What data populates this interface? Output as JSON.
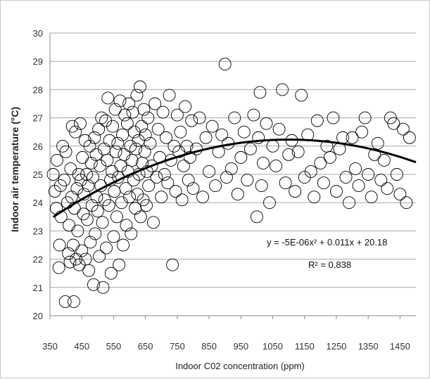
{
  "chart_data": {
    "type": "scatter",
    "title": "",
    "xlabel": "Indoor C02 concentration (ppm)",
    "ylabel": "Indoor air temperature (°C)",
    "xlim": [
      350,
      1500
    ],
    "ylim": [
      20,
      30
    ],
    "xticks": [
      350,
      450,
      550,
      650,
      750,
      850,
      950,
      1050,
      1150,
      1250,
      1350,
      1450
    ],
    "xtick_labels": [
      "350",
      "450",
      "550",
      "650",
      "750",
      "850",
      "950",
      "1050",
      "1150",
      "1250",
      "1350",
      "1450"
    ],
    "yticks": [
      20,
      21,
      22,
      23,
      24,
      25,
      26,
      27,
      28,
      29,
      30
    ],
    "ytick_labels": [
      "20",
      "21",
      "22",
      "23",
      "24",
      "25",
      "26",
      "27",
      "28",
      "29",
      "30"
    ],
    "grid": "horizontal",
    "marker": "open-circle",
    "point_color": "#000000",
    "trendline": {
      "type": "polynomial",
      "coefficients": {
        "a": -5e-06,
        "b": 0.011,
        "c": 20.18
      },
      "x_range": [
        360,
        1500
      ],
      "color": "#000000"
    },
    "equation_label": "y = -5E-06x² + 0.011x + 20.18",
    "r2_label": "R² = 0.838",
    "series": [
      {
        "points": [
          [
            360,
            25.0
          ],
          [
            365,
            24.4
          ],
          [
            370,
            23.8
          ],
          [
            372,
            25.5
          ],
          [
            378,
            21.7
          ],
          [
            380,
            22.5
          ],
          [
            383,
            24.6
          ],
          [
            385,
            23.5
          ],
          [
            390,
            26.0
          ],
          [
            395,
            24.8
          ],
          [
            398,
            20.5
          ],
          [
            400,
            25.8
          ],
          [
            405,
            24.0
          ],
          [
            408,
            22.2
          ],
          [
            410,
            23.2
          ],
          [
            413,
            21.9
          ],
          [
            415,
            25.2
          ],
          [
            418,
            24.2
          ],
          [
            420,
            26.7
          ],
          [
            423,
            22.5
          ],
          [
            425,
            20.5
          ],
          [
            427,
            23.8
          ],
          [
            430,
            26.5
          ],
          [
            432,
            22.0
          ],
          [
            435,
            24.5
          ],
          [
            437,
            23.0
          ],
          [
            440,
            25.0
          ],
          [
            442,
            21.8
          ],
          [
            445,
            26.8
          ],
          [
            447,
            24.8
          ],
          [
            450,
            22.3
          ],
          [
            452,
            25.6
          ],
          [
            455,
            23.6
          ],
          [
            457,
            24.3
          ],
          [
            460,
            26.2
          ],
          [
            462,
            22.0
          ],
          [
            465,
            25.0
          ],
          [
            467,
            23.4
          ],
          [
            470,
            24.6
          ],
          [
            472,
            21.6
          ],
          [
            475,
            26.0
          ],
          [
            477,
            22.6
          ],
          [
            480,
            25.4
          ],
          [
            482,
            23.9
          ],
          [
            485,
            24.9
          ],
          [
            487,
            21.1
          ],
          [
            490,
            26.3
          ],
          [
            492,
            22.9
          ],
          [
            495,
            25.7
          ],
          [
            497,
            24.2
          ],
          [
            500,
            23.7
          ],
          [
            503,
            26.6
          ],
          [
            505,
            22.1
          ],
          [
            507,
            25.3
          ],
          [
            510,
            24.6
          ],
          [
            512,
            27.0
          ],
          [
            515,
            23.3
          ],
          [
            517,
            21.0
          ],
          [
            520,
            25.9
          ],
          [
            522,
            24.1
          ],
          [
            525,
            26.9
          ],
          [
            527,
            22.4
          ],
          [
            530,
            25.5
          ],
          [
            532,
            27.7
          ],
          [
            535,
            23.9
          ],
          [
            537,
            26.2
          ],
          [
            540,
            24.8
          ],
          [
            542,
            21.5
          ],
          [
            545,
            25.1
          ],
          [
            547,
            26.7
          ],
          [
            550,
            22.8
          ],
          [
            552,
            24.4
          ],
          [
            555,
            27.3
          ],
          [
            557,
            25.8
          ],
          [
            560,
            23.5
          ],
          [
            563,
            26.1
          ],
          [
            565,
            24.9
          ],
          [
            567,
            21.8
          ],
          [
            570,
            27.6
          ],
          [
            572,
            25.3
          ],
          [
            575,
            24.0
          ],
          [
            578,
            26.4
          ],
          [
            580,
            22.5
          ],
          [
            583,
            25.7
          ],
          [
            585,
            27.1
          ],
          [
            588,
            24.5
          ],
          [
            590,
            23.2
          ],
          [
            593,
            26.8
          ],
          [
            595,
            25.1
          ],
          [
            598,
            27.5
          ],
          [
            600,
            24.2
          ],
          [
            603,
            26.0
          ],
          [
            605,
            22.9
          ],
          [
            608,
            25.5
          ],
          [
            610,
            27.2
          ],
          [
            613,
            24.8
          ],
          [
            615,
            26.5
          ],
          [
            618,
            23.8
          ],
          [
            620,
            25.9
          ],
          [
            623,
            27.8
          ],
          [
            625,
            24.3
          ],
          [
            628,
            26.2
          ],
          [
            630,
            25.0
          ],
          [
            633,
            28.1
          ],
          [
            635,
            23.5
          ],
          [
            638,
            26.7
          ],
          [
            640,
            25.4
          ],
          [
            643,
            24.1
          ],
          [
            645,
            27.3
          ],
          [
            648,
            25.8
          ],
          [
            650,
            26.4
          ],
          [
            653,
            23.9
          ],
          [
            655,
            25.1
          ],
          [
            658,
            27.0
          ],
          [
            660,
            24.6
          ],
          [
            665,
            26.1
          ],
          [
            670,
            25.3
          ],
          [
            675,
            23.3
          ],
          [
            680,
            27.5
          ],
          [
            685,
            24.9
          ],
          [
            690,
            26.6
          ],
          [
            695,
            25.6
          ],
          [
            700,
            24.2
          ],
          [
            705,
            27.2
          ],
          [
            710,
            25.0
          ],
          [
            715,
            26.3
          ],
          [
            720,
            24.7
          ],
          [
            725,
            27.8
          ],
          [
            730,
            25.5
          ],
          [
            735,
            21.8
          ],
          [
            740,
            26.0
          ],
          [
            745,
            24.4
          ],
          [
            750,
            27.1
          ],
          [
            755,
            25.8
          ],
          [
            760,
            26.5
          ],
          [
            765,
            24.1
          ],
          [
            770,
            25.3
          ],
          [
            775,
            27.4
          ],
          [
            780,
            26.0
          ],
          [
            785,
            24.8
          ],
          [
            790,
            25.6
          ],
          [
            795,
            26.9
          ],
          [
            800,
            24.5
          ],
          [
            810,
            25.9
          ],
          [
            820,
            27.0
          ],
          [
            830,
            24.2
          ],
          [
            840,
            26.3
          ],
          [
            850,
            25.1
          ],
          [
            860,
            26.7
          ],
          [
            870,
            24.6
          ],
          [
            880,
            25.8
          ],
          [
            890,
            26.4
          ],
          [
            900,
            28.9
          ],
          [
            905,
            24.9
          ],
          [
            910,
            26.1
          ],
          [
            920,
            25.2
          ],
          [
            930,
            27.0
          ],
          [
            940,
            24.3
          ],
          [
            950,
            25.6
          ],
          [
            960,
            26.5
          ],
          [
            970,
            24.8
          ],
          [
            980,
            25.9
          ],
          [
            990,
            27.1
          ],
          [
            1000,
            23.5
          ],
          [
            1005,
            26.3
          ],
          [
            1010,
            27.9
          ],
          [
            1015,
            24.6
          ],
          [
            1020,
            25.4
          ],
          [
            1030,
            26.8
          ],
          [
            1040,
            24.0
          ],
          [
            1050,
            26.0
          ],
          [
            1060,
            25.3
          ],
          [
            1070,
            26.6
          ],
          [
            1080,
            28.0
          ],
          [
            1090,
            24.7
          ],
          [
            1100,
            25.7
          ],
          [
            1110,
            26.2
          ],
          [
            1120,
            24.4
          ],
          [
            1130,
            25.8
          ],
          [
            1140,
            27.8
          ],
          [
            1150,
            24.9
          ],
          [
            1160,
            26.4
          ],
          [
            1170,
            25.1
          ],
          [
            1180,
            24.2
          ],
          [
            1190,
            26.9
          ],
          [
            1200,
            25.4
          ],
          [
            1210,
            24.7
          ],
          [
            1220,
            26.0
          ],
          [
            1230,
            25.6
          ],
          [
            1240,
            27.0
          ],
          [
            1250,
            24.4
          ],
          [
            1260,
            25.9
          ],
          [
            1270,
            26.3
          ],
          [
            1280,
            24.9
          ],
          [
            1290,
            24.0
          ],
          [
            1300,
            26.3
          ],
          [
            1310,
            25.2
          ],
          [
            1320,
            24.6
          ],
          [
            1330,
            26.5
          ],
          [
            1340,
            27.0
          ],
          [
            1350,
            25.0
          ],
          [
            1360,
            24.2
          ],
          [
            1370,
            25.7
          ],
          [
            1380,
            26.1
          ],
          [
            1390,
            24.8
          ],
          [
            1400,
            25.5
          ],
          [
            1410,
            24.5
          ],
          [
            1420,
            27.0
          ],
          [
            1430,
            26.8
          ],
          [
            1440,
            25.0
          ],
          [
            1450,
            24.3
          ],
          [
            1460,
            26.6
          ],
          [
            1470,
            24.0
          ],
          [
            1480,
            26.3
          ]
        ]
      }
    ]
  }
}
